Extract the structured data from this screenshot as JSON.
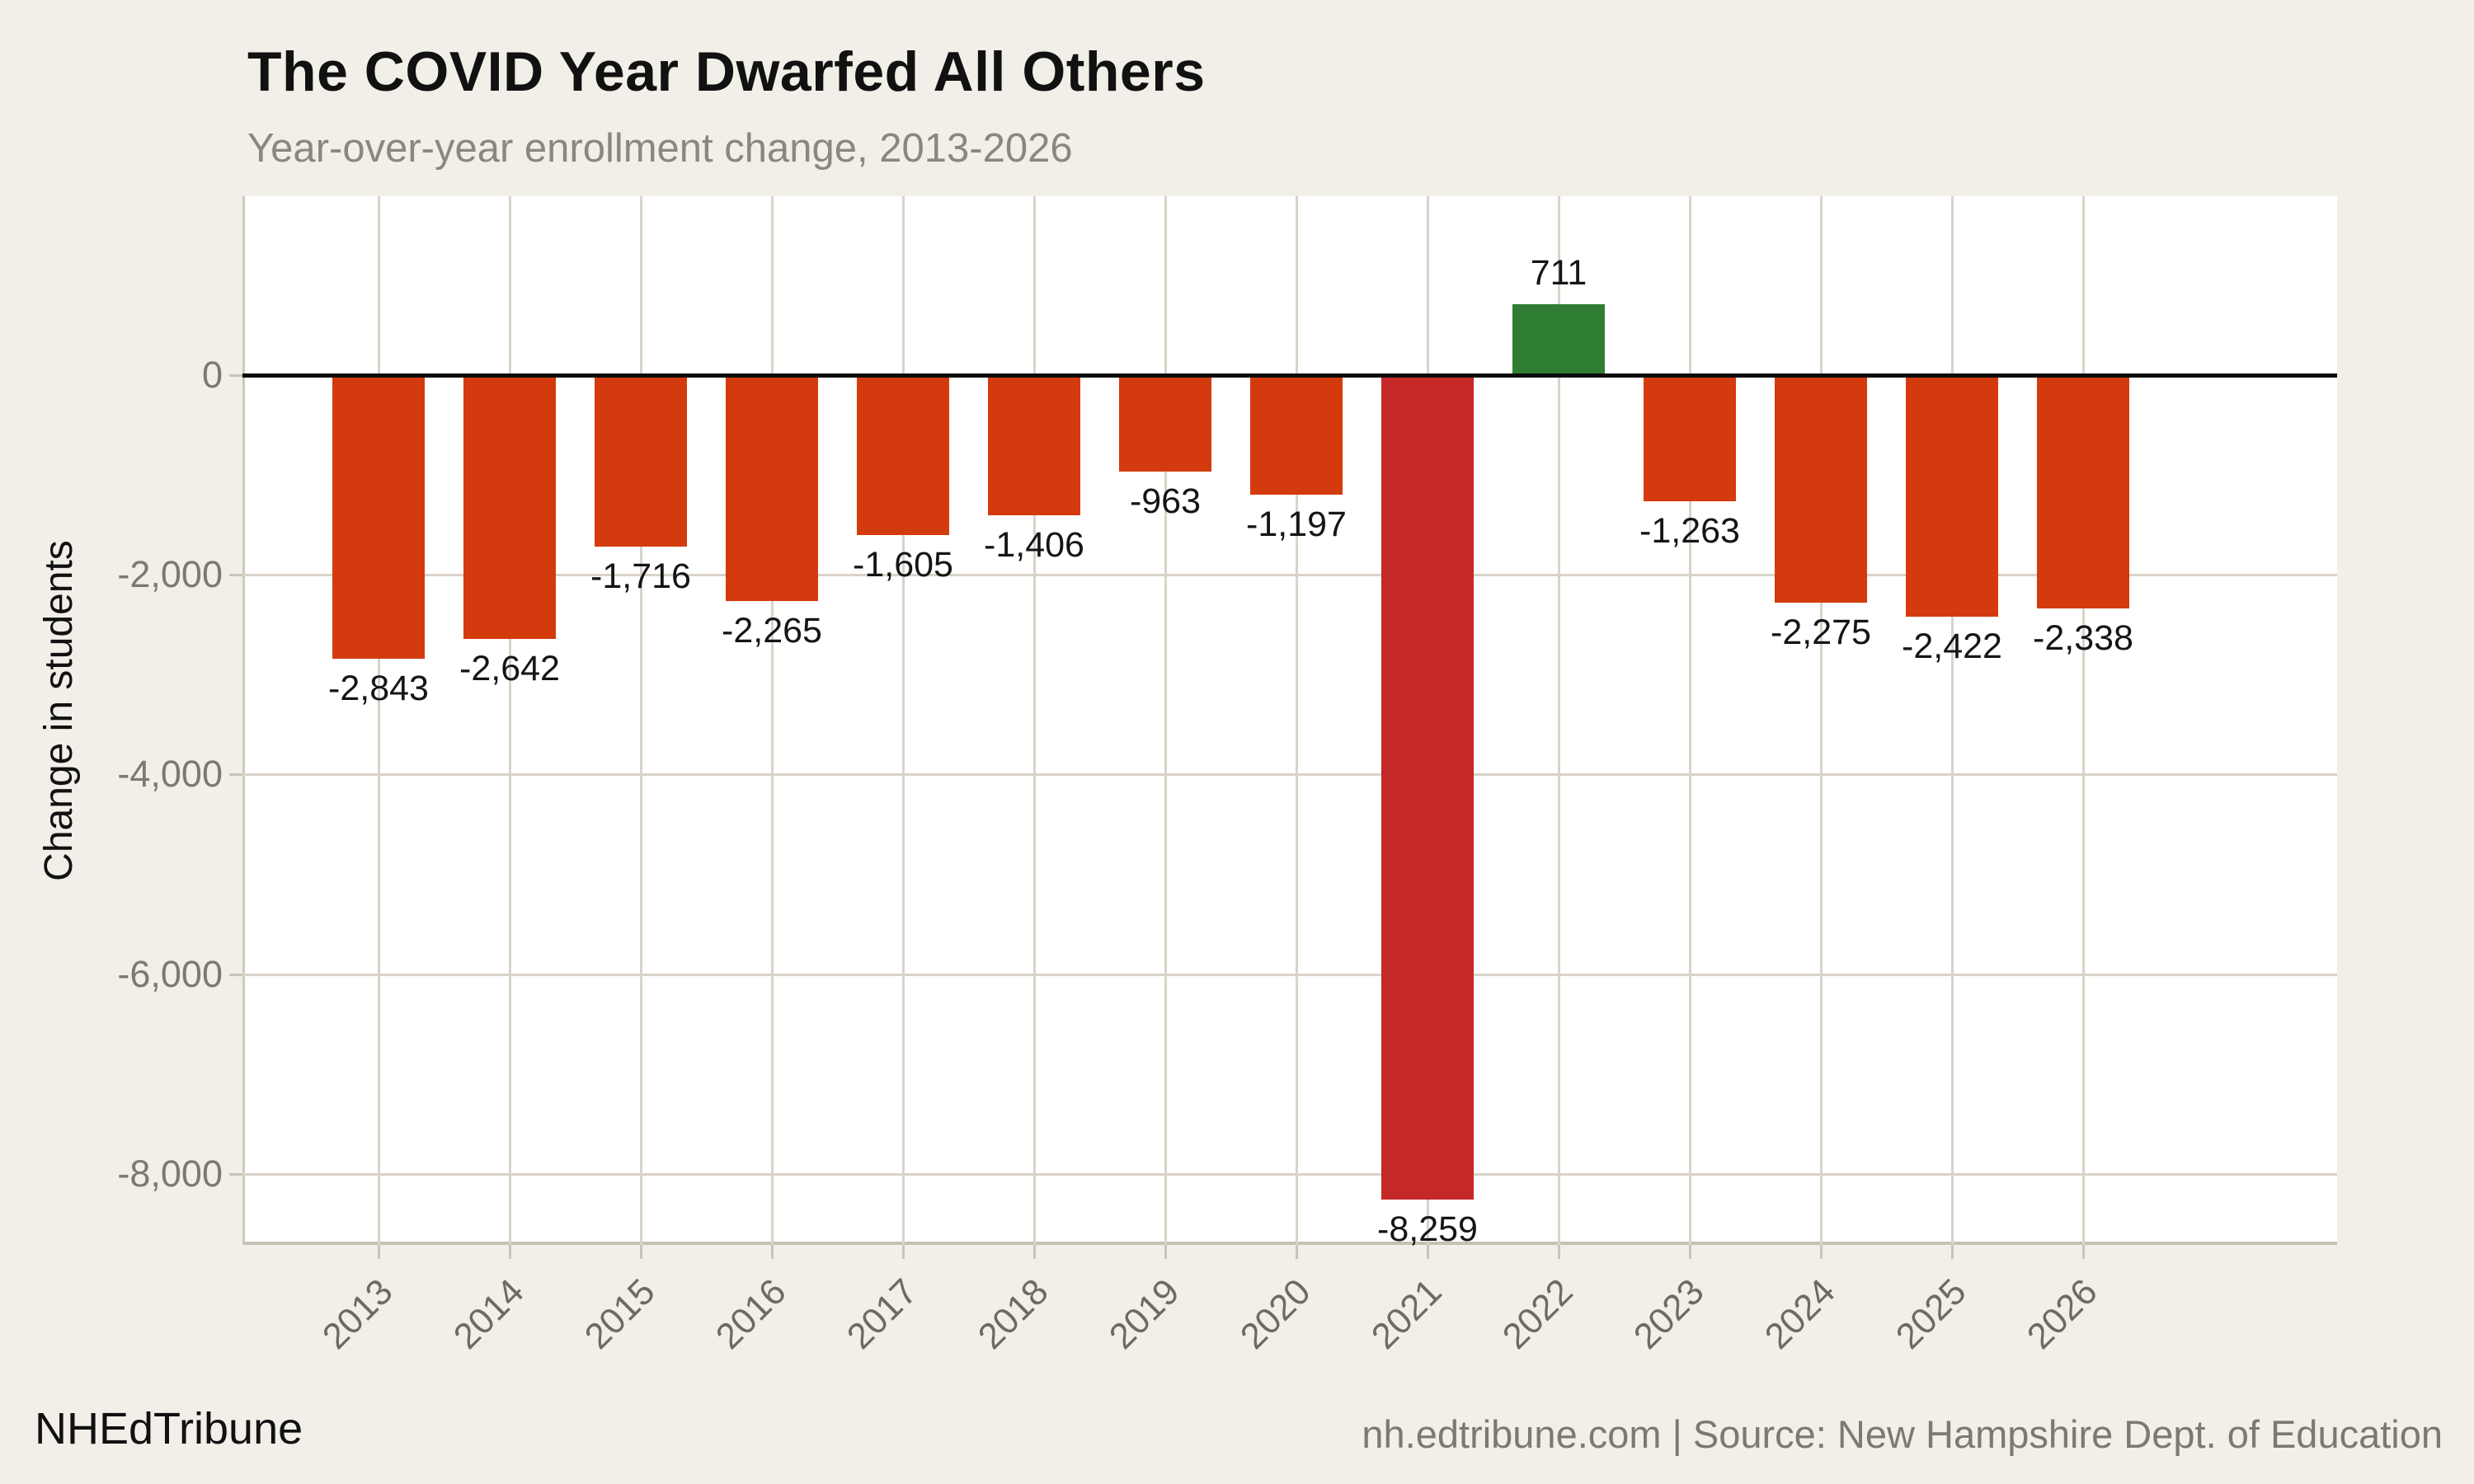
{
  "header": {
    "title": "The COVID Year Dwarfed All Others",
    "subtitle": "Year-over-year enrollment change, 2013-2026"
  },
  "footer": {
    "brand": "NHEdTribune",
    "source": "nh.edtribune.com | Source: New Hampshire Dept. of Education"
  },
  "colors": {
    "background": "#f2efe8",
    "panel": "#ffffff",
    "gridline": "#d9d3c8",
    "zero_line": "#0b0b0b",
    "bar_negative": "#d33b0e",
    "bar_covid": "#c42827",
    "bar_positive": "#2e7d32",
    "tick_text": "#7d7970",
    "subtitle_text": "#8b8780"
  },
  "chart_data": {
    "type": "bar",
    "title": "The COVID Year Dwarfed All Others",
    "subtitle": "Year-over-year enrollment change, 2013-2026",
    "xlabel": "",
    "ylabel": "Change in students",
    "categories": [
      "2013",
      "2014",
      "2015",
      "2016",
      "2017",
      "2018",
      "2019",
      "2020",
      "2021",
      "2022",
      "2023",
      "2024",
      "2025",
      "2026"
    ],
    "values": [
      -2843,
      -2642,
      -1716,
      -2265,
      -1605,
      -1406,
      -963,
      -1197,
      -8259,
      711,
      -1263,
      -2275,
      -2422,
      -2338
    ],
    "value_labels": [
      "-2,843",
      "-2,642",
      "-1,716",
      "-2,265",
      "-1,605",
      "-1,406",
      "-963",
      "-1,197",
      "-8,259",
      "711",
      "-1,263",
      "-2,275",
      "-2,422",
      "-2,338"
    ],
    "bar_colors": [
      "#d33b0e",
      "#d33b0e",
      "#d33b0e",
      "#d33b0e",
      "#d33b0e",
      "#d33b0e",
      "#d33b0e",
      "#d33b0e",
      "#c42827",
      "#2e7d32",
      "#d33b0e",
      "#d33b0e",
      "#d33b0e",
      "#d33b0e"
    ],
    "ytick_values": [
      0,
      -2000,
      -4000,
      -6000,
      -8000
    ],
    "ytick_labels": [
      "0",
      "-2,000",
      "-4,000",
      "-6,000",
      "-8,000"
    ],
    "ylim": [
      -8700,
      1800
    ],
    "grid": true,
    "legend_position": "none"
  }
}
